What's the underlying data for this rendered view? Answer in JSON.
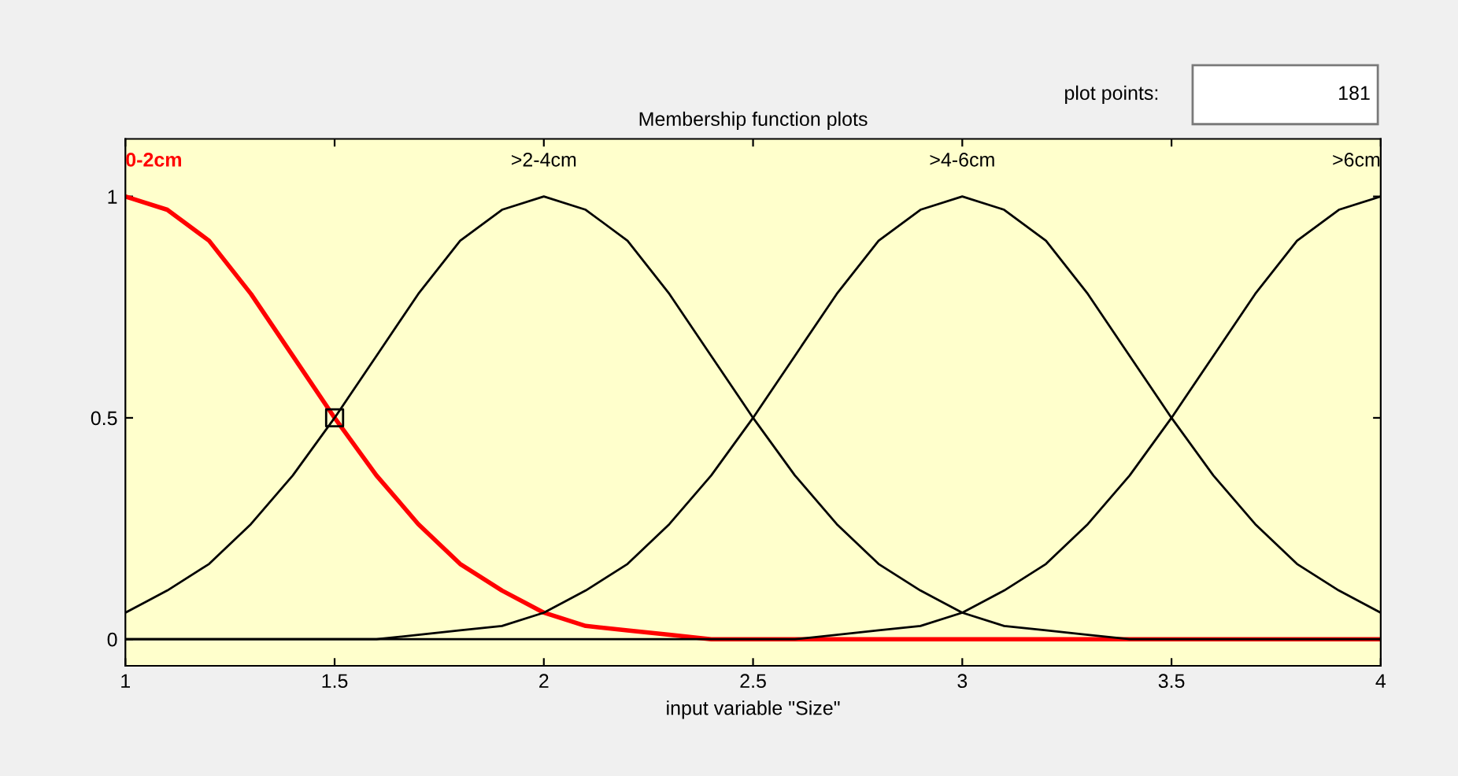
{
  "chart_data": {
    "type": "line",
    "title": "Membership function plots",
    "xlabel": "input variable \"Size\"",
    "annotations": [
      "plot points:",
      "181"
    ],
    "x": [
      1.0,
      1.1,
      1.2,
      1.3,
      1.4,
      1.5,
      1.6,
      1.7,
      1.8,
      1.9,
      2.0,
      2.1,
      2.2,
      2.3,
      2.4,
      2.5,
      2.6,
      2.7,
      2.8,
      2.9,
      3.0,
      3.1,
      3.2,
      3.3,
      3.4,
      3.5,
      3.6,
      3.7,
      3.8,
      3.9,
      4.0
    ],
    "series": [
      {
        "name": "0-2cm",
        "color": "#ff0000",
        "values": [
          1,
          0.97,
          0.9,
          0.78,
          0.64,
          0.5,
          0.37,
          0.26,
          0.17,
          0.11,
          0.06,
          0.03,
          0.02,
          0.01,
          0,
          0,
          0,
          0,
          0,
          0,
          0,
          0,
          0,
          0,
          0,
          0,
          0,
          0,
          0,
          0,
          0
        ]
      },
      {
        "name": ">2-4cm",
        "color": "#000000",
        "values": [
          0.06,
          0.11,
          0.17,
          0.26,
          0.37,
          0.5,
          0.64,
          0.78,
          0.9,
          0.97,
          1,
          0.97,
          0.9,
          0.78,
          0.64,
          0.5,
          0.37,
          0.26,
          0.17,
          0.11,
          0.06,
          0.03,
          0.02,
          0.01,
          0,
          0,
          0,
          0,
          0,
          0,
          0
        ]
      },
      {
        "name": ">4-6cm",
        "color": "#000000",
        "values": [
          0,
          0,
          0,
          0,
          0,
          0,
          0,
          0.01,
          0.02,
          0.03,
          0.06,
          0.11,
          0.17,
          0.26,
          0.37,
          0.5,
          0.64,
          0.78,
          0.9,
          0.97,
          1,
          0.97,
          0.9,
          0.78,
          0.64,
          0.5,
          0.37,
          0.26,
          0.17,
          0.11,
          0.06
        ]
      },
      {
        "name": ">6cm",
        "color": "#000000",
        "values": [
          0,
          0,
          0,
          0,
          0,
          0,
          0,
          0,
          0,
          0,
          0,
          0,
          0,
          0,
          0,
          0,
          0,
          0.01,
          0.02,
          0.03,
          0.06,
          0.11,
          0.17,
          0.26,
          0.37,
          0.5,
          0.64,
          0.78,
          0.9,
          0.97,
          1
        ]
      },
      {
        "type": "scatter",
        "marker": "square",
        "color": "#000000",
        "x": [
          1.5
        ],
        "values": [
          0.5
        ]
      }
    ],
    "xlim": [
      1,
      4
    ],
    "ylim": [
      -0.06,
      1.13
    ],
    "xticks": [
      1,
      1.5,
      2,
      2.5,
      3,
      3.5,
      4
    ],
    "yticks": [
      0,
      0.5,
      1
    ],
    "marker": "none",
    "line_style": "solid",
    "grid": false,
    "legend": "top"
  }
}
